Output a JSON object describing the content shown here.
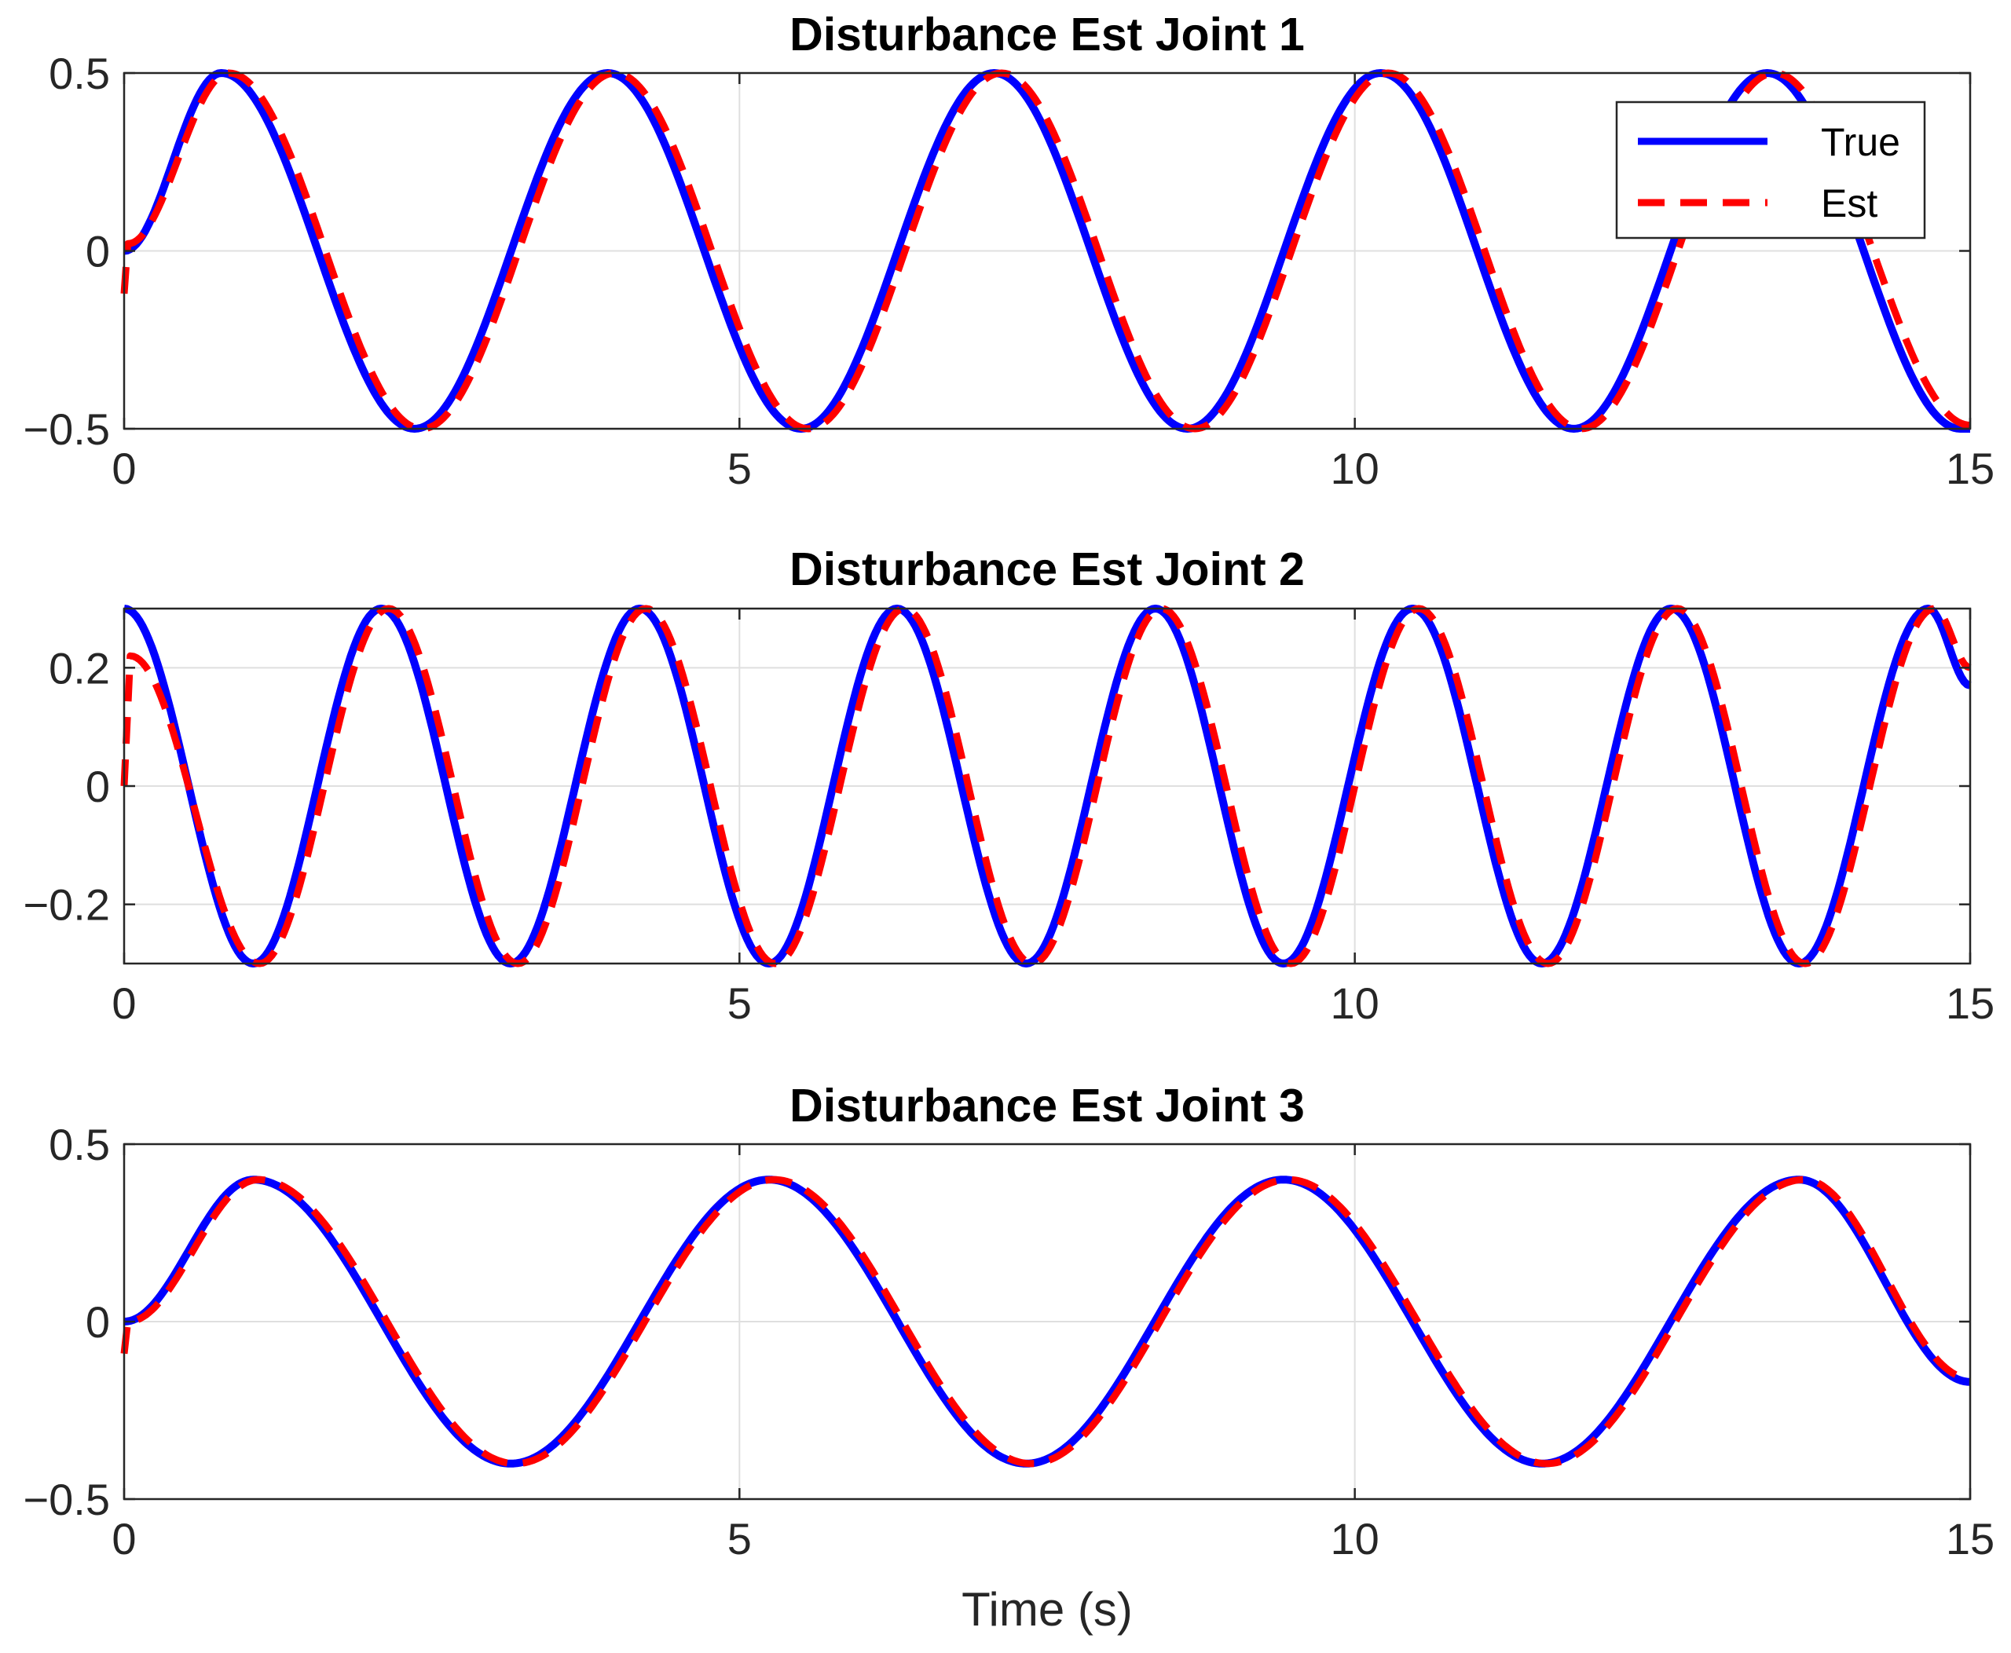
{
  "chart_data": [
    {
      "type": "line",
      "title": "Disturbance Est Joint 1",
      "xlabel": "",
      "ylabel": "",
      "xlim": [
        0,
        15
      ],
      "ylim": [
        -0.5,
        0.5
      ],
      "xticks": [
        0,
        5,
        10,
        15
      ],
      "xtick_labels": [
        "0",
        "5",
        "10",
        "15"
      ],
      "yticks": [
        -0.5,
        0,
        0.5
      ],
      "ytick_labels": [
        "−0.5",
        "0",
        "0.5"
      ],
      "grid": true,
      "legend": {
        "placement": "top-right",
        "entries": [
          "True",
          "Est"
        ]
      },
      "series": [
        {
          "name": "True",
          "color": "#0000ff",
          "style": "solid",
          "x": [
            0,
            0.79,
            2.36,
            3.93,
            5.5,
            7.07,
            8.64,
            10.21,
            11.78,
            13.35,
            14.92,
            15
          ],
          "y": [
            0,
            0.5,
            -0.5,
            0.5,
            -0.5,
            0.5,
            -0.5,
            0.5,
            -0.5,
            0.5,
            -0.5,
            -0.5
          ]
        },
        {
          "name": "Est",
          "color": "#ff0000",
          "style": "dashed",
          "x": [
            0,
            0.03,
            0.85,
            2.42,
            3.99,
            5.56,
            7.13,
            8.7,
            10.27,
            11.84,
            13.41,
            15
          ],
          "y": [
            -0.12,
            0.02,
            0.5,
            -0.5,
            0.5,
            -0.5,
            0.5,
            -0.5,
            0.5,
            -0.5,
            0.5,
            -0.49
          ]
        }
      ]
    },
    {
      "type": "line",
      "title": "Disturbance Est Joint 2",
      "xlabel": "",
      "ylabel": "",
      "xlim": [
        0,
        15
      ],
      "ylim": [
        -0.3,
        0.3
      ],
      "xticks": [
        0,
        5,
        10,
        15
      ],
      "xtick_labels": [
        "0",
        "5",
        "10",
        "15"
      ],
      "yticks": [
        -0.2,
        0,
        0.2
      ],
      "ytick_labels": [
        "−0.2",
        "0",
        "0.2"
      ],
      "grid": true,
      "series": [
        {
          "name": "True",
          "color": "#0000ff",
          "style": "solid",
          "x": [
            0,
            1.05,
            2.09,
            3.14,
            4.19,
            5.24,
            6.28,
            7.33,
            8.38,
            9.42,
            10.47,
            11.52,
            12.57,
            13.61,
            14.66,
            15
          ],
          "y": [
            0.3,
            -0.3,
            0.3,
            -0.3,
            0.3,
            -0.3,
            0.3,
            -0.3,
            0.3,
            -0.3,
            0.3,
            -0.3,
            0.3,
            -0.3,
            0.3,
            0.17
          ]
        },
        {
          "name": "Est",
          "color": "#ff0000",
          "style": "dashed",
          "x": [
            0,
            0.05,
            1.1,
            2.15,
            3.2,
            4.24,
            5.29,
            6.34,
            7.38,
            8.43,
            9.48,
            10.52,
            11.57,
            12.62,
            13.66,
            14.71,
            15
          ],
          "y": [
            0.0,
            0.22,
            -0.3,
            0.3,
            -0.3,
            0.3,
            -0.3,
            0.3,
            -0.3,
            0.3,
            -0.3,
            0.3,
            -0.3,
            0.3,
            -0.3,
            0.3,
            0.2
          ]
        }
      ]
    },
    {
      "type": "line",
      "title": "Disturbance Est Joint 3",
      "xlabel": "Time (s)",
      "ylabel": "",
      "xlim": [
        0,
        15
      ],
      "ylim": [
        -0.5,
        0.5
      ],
      "xticks": [
        0,
        5,
        10,
        15
      ],
      "xtick_labels": [
        "0",
        "5",
        "10",
        "15"
      ],
      "yticks": [
        -0.5,
        0,
        0.5
      ],
      "ytick_labels": [
        "−0.5",
        "0",
        "0.5"
      ],
      "grid": true,
      "series": [
        {
          "name": "True",
          "color": "#0000ff",
          "style": "solid",
          "x": [
            0,
            1.05,
            3.14,
            5.24,
            7.33,
            9.42,
            11.52,
            13.61,
            15
          ],
          "y": [
            0,
            0.4,
            -0.4,
            0.4,
            -0.4,
            0.4,
            -0.4,
            0.4,
            -0.17
          ]
        },
        {
          "name": "Est",
          "color": "#ff0000",
          "style": "dashed",
          "x": [
            0,
            0.03,
            1.09,
            3.18,
            5.28,
            7.37,
            9.46,
            11.56,
            13.65,
            15
          ],
          "y": [
            -0.09,
            0.0,
            0.4,
            -0.4,
            0.4,
            -0.4,
            0.4,
            -0.4,
            0.4,
            -0.16
          ]
        }
      ]
    }
  ]
}
